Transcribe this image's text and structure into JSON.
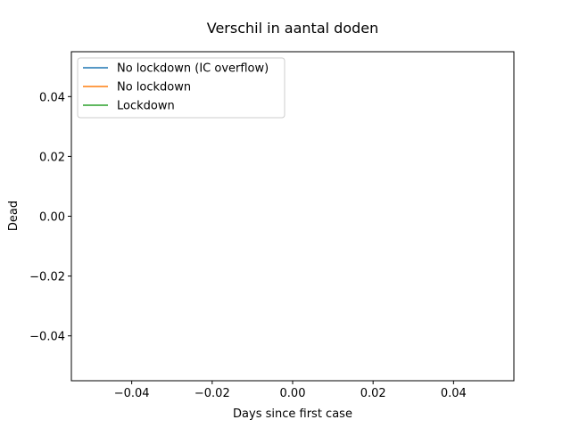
{
  "chart_data": {
    "type": "line",
    "title": "Verschil in aantal doden",
    "xlabel": "Days since first case",
    "ylabel": "Dead",
    "xlim": [
      -0.055,
      0.055
    ],
    "ylim": [
      -0.055,
      0.055
    ],
    "xticks": [
      -0.04,
      -0.02,
      0.0,
      0.02,
      0.04
    ],
    "xtick_labels": [
      "−0.04",
      "−0.02",
      "0.00",
      "0.02",
      "0.04"
    ],
    "yticks": [
      -0.04,
      -0.02,
      0.0,
      0.02,
      0.04
    ],
    "ytick_labels": [
      "−0.04",
      "−0.02",
      "0.00",
      "0.02",
      "0.04"
    ],
    "grid": false,
    "legend_position": "top-left",
    "series": [
      {
        "name": "No lockdown (IC overflow)",
        "color": "#1f77b4",
        "x": [],
        "y": []
      },
      {
        "name": "No lockdown",
        "color": "#ff7f0e",
        "x": [],
        "y": []
      },
      {
        "name": "Lockdown",
        "color": "#2ca02c",
        "x": [],
        "y": []
      }
    ]
  }
}
